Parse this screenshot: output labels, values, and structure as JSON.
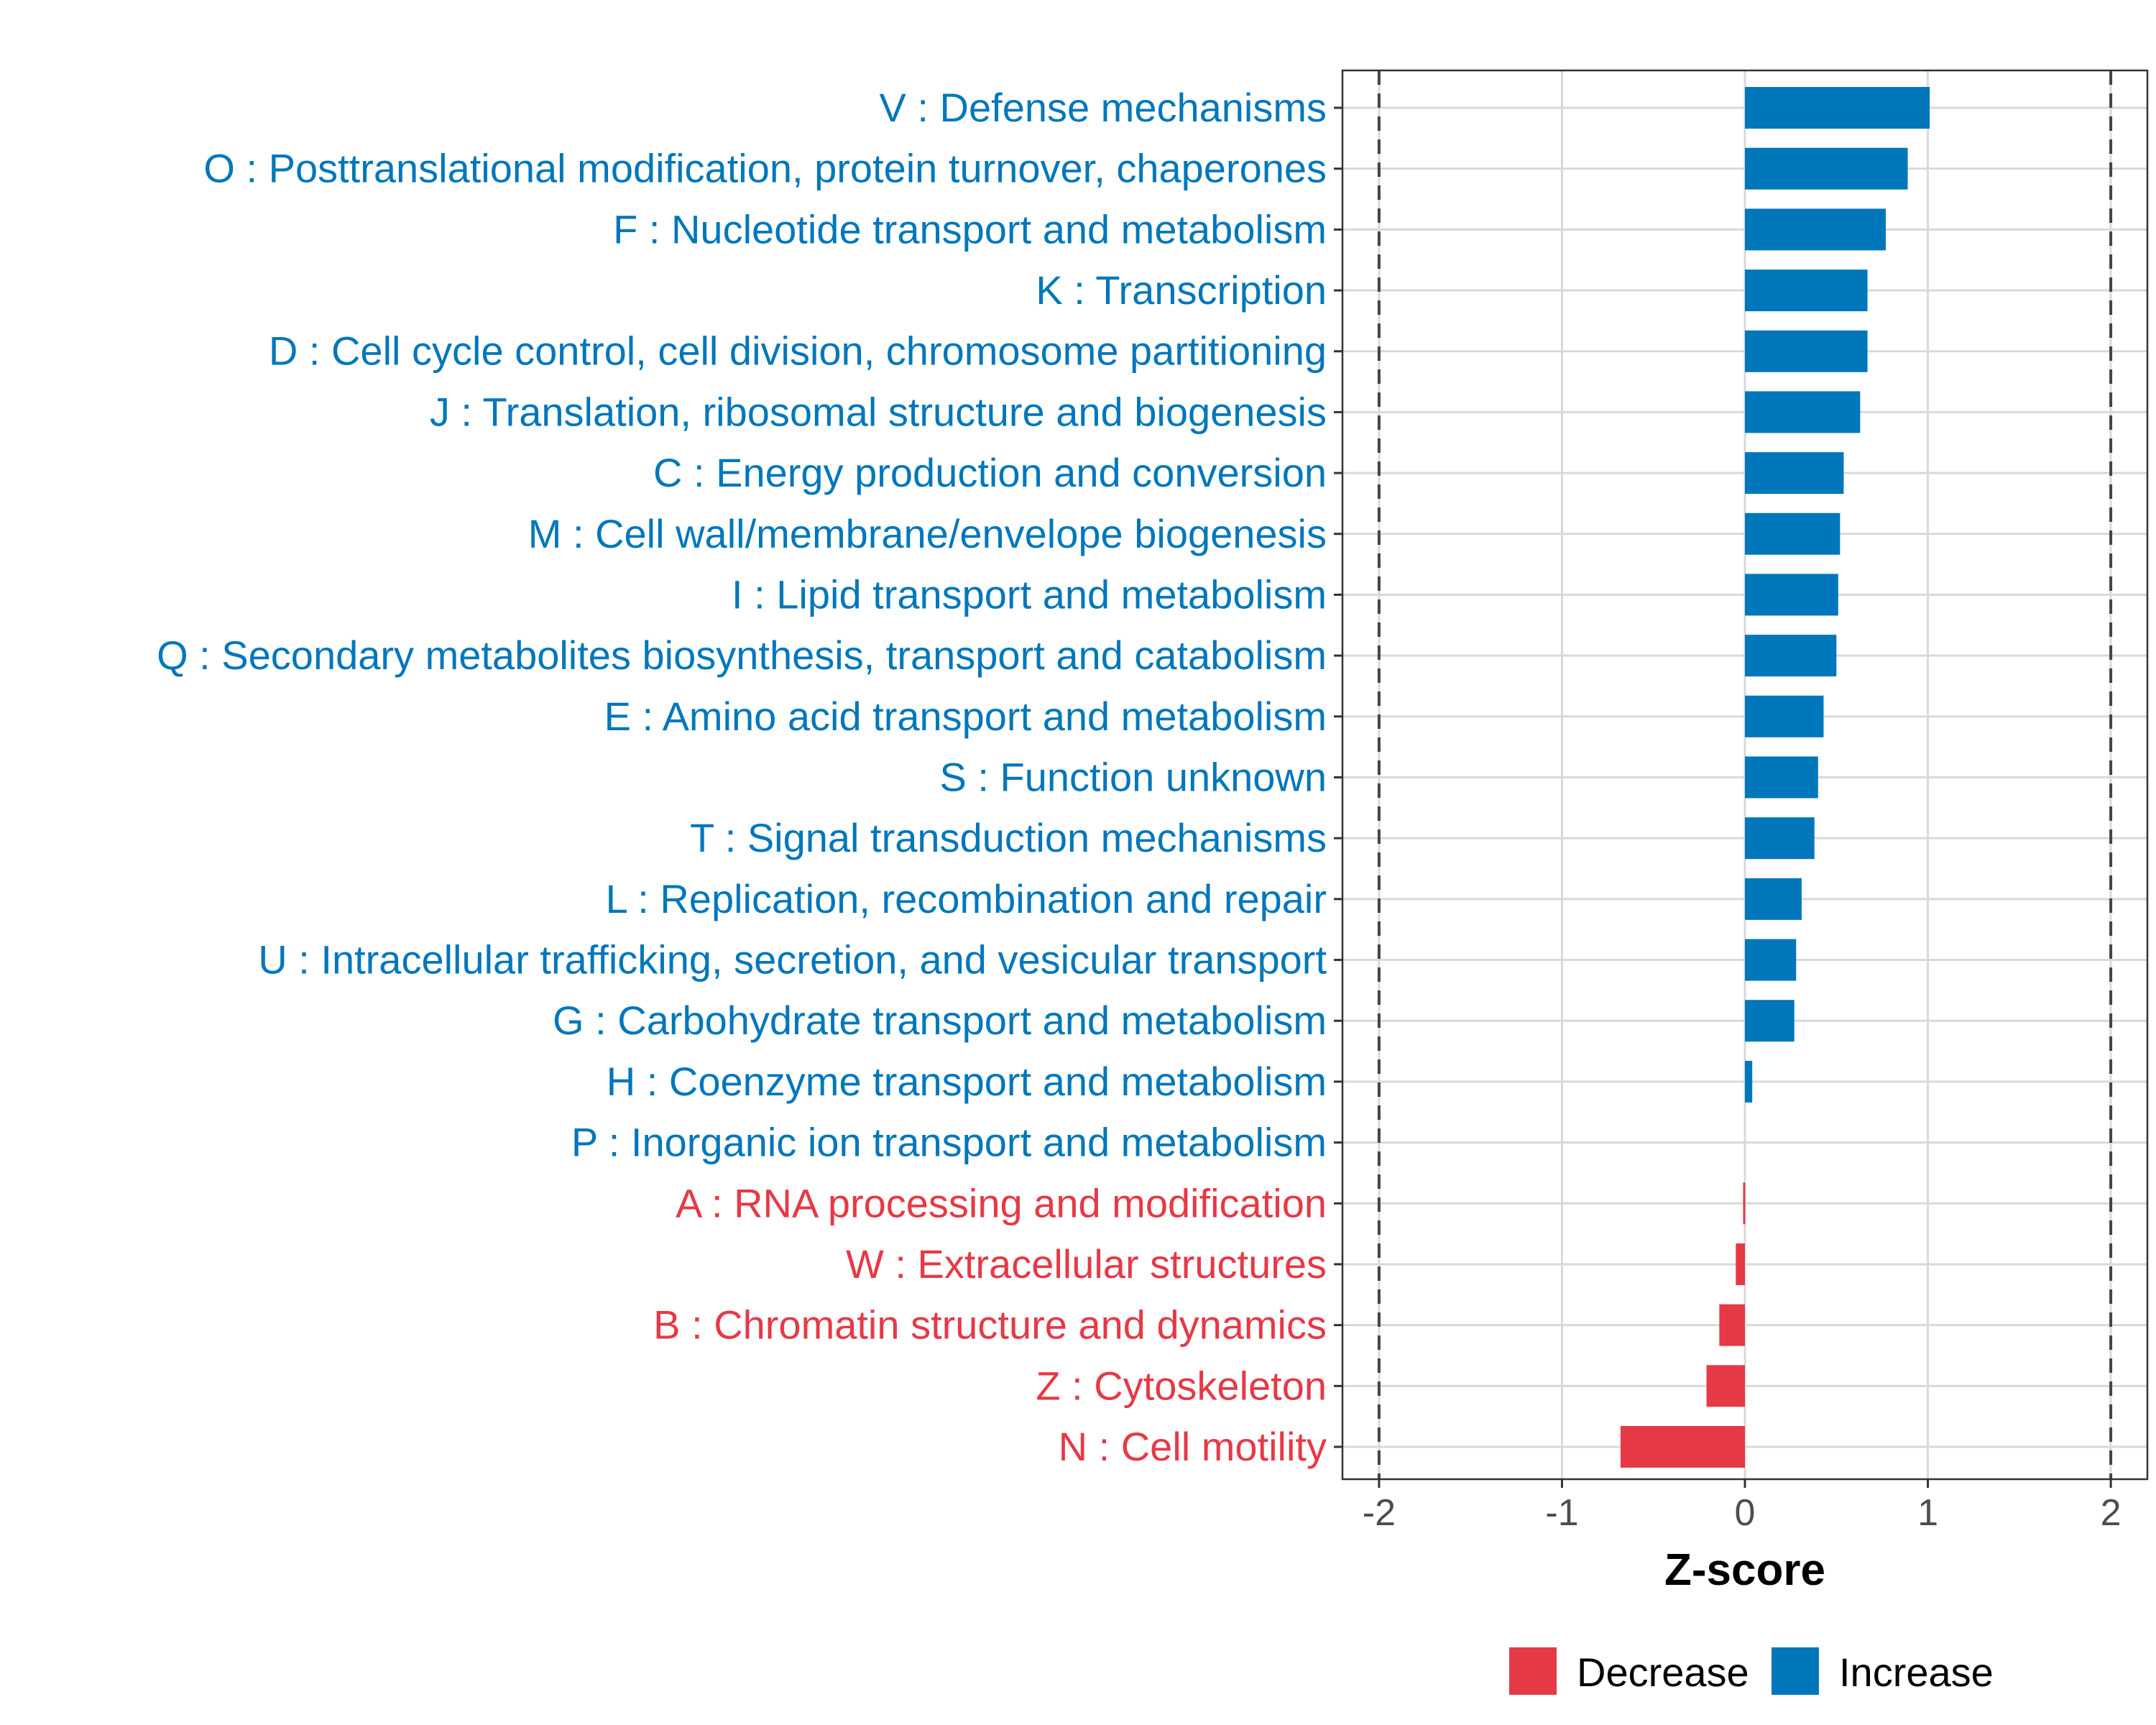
{
  "chart_data": {
    "type": "bar",
    "orientation": "horizontal",
    "title": "",
    "xlabel": "Z-score",
    "ylabel": "",
    "xlim": [
      -2.2,
      2.2
    ],
    "xticks": [
      -2,
      -1,
      0,
      1,
      2
    ],
    "xtick_labels": [
      "-2",
      "-1",
      "0",
      "1",
      "2"
    ],
    "reference_lines": [
      -2,
      2
    ],
    "grid": true,
    "legend_position": "bottom",
    "colors": {
      "Increase": "#0077BB",
      "Decrease": "#E63946"
    },
    "legend": [
      {
        "name": "Decrease",
        "color": "#E63946"
      },
      {
        "name": "Increase",
        "color": "#0077BB"
      }
    ],
    "bars": [
      {
        "label": "V : Defense mechanisms",
        "value": 1.01,
        "group": "Increase"
      },
      {
        "label": "O : Posttranslational modification, protein turnover, chaperones",
        "value": 0.89,
        "group": "Increase"
      },
      {
        "label": "F : Nucleotide transport and metabolism",
        "value": 0.77,
        "group": "Increase"
      },
      {
        "label": "K : Transcription",
        "value": 0.67,
        "group": "Increase"
      },
      {
        "label": "D : Cell cycle control, cell division, chromosome partitioning",
        "value": 0.67,
        "group": "Increase"
      },
      {
        "label": "J : Translation, ribosomal structure and biogenesis",
        "value": 0.63,
        "group": "Increase"
      },
      {
        "label": "C : Energy production and conversion",
        "value": 0.54,
        "group": "Increase"
      },
      {
        "label": "M : Cell wall/membrane/envelope biogenesis",
        "value": 0.52,
        "group": "Increase"
      },
      {
        "label": "I : Lipid transport and metabolism",
        "value": 0.51,
        "group": "Increase"
      },
      {
        "label": "Q : Secondary metabolites biosynthesis, transport and catabolism",
        "value": 0.5,
        "group": "Increase"
      },
      {
        "label": "E : Amino acid transport and metabolism",
        "value": 0.43,
        "group": "Increase"
      },
      {
        "label": "S : Function unknown",
        "value": 0.4,
        "group": "Increase"
      },
      {
        "label": "T : Signal transduction mechanisms",
        "value": 0.38,
        "group": "Increase"
      },
      {
        "label": "L : Replication, recombination and repair",
        "value": 0.31,
        "group": "Increase"
      },
      {
        "label": "U : Intracellular trafficking, secretion, and vesicular transport",
        "value": 0.28,
        "group": "Increase"
      },
      {
        "label": "G : Carbohydrate transport and metabolism",
        "value": 0.27,
        "group": "Increase"
      },
      {
        "label": "H : Coenzyme transport and metabolism",
        "value": 0.04,
        "group": "Increase"
      },
      {
        "label": "P : Inorganic ion transport and metabolism",
        "value": 0.0,
        "group": "Increase"
      },
      {
        "label": "A : RNA processing and modification",
        "value": -0.01,
        "group": "Decrease"
      },
      {
        "label": "W : Extracellular structures",
        "value": -0.05,
        "group": "Decrease"
      },
      {
        "label": "B : Chromatin structure and dynamics",
        "value": -0.14,
        "group": "Decrease"
      },
      {
        "label": "Z : Cytoskeleton",
        "value": -0.21,
        "group": "Decrease"
      },
      {
        "label": "N : Cell motility",
        "value": -0.68,
        "group": "Decrease"
      }
    ]
  }
}
